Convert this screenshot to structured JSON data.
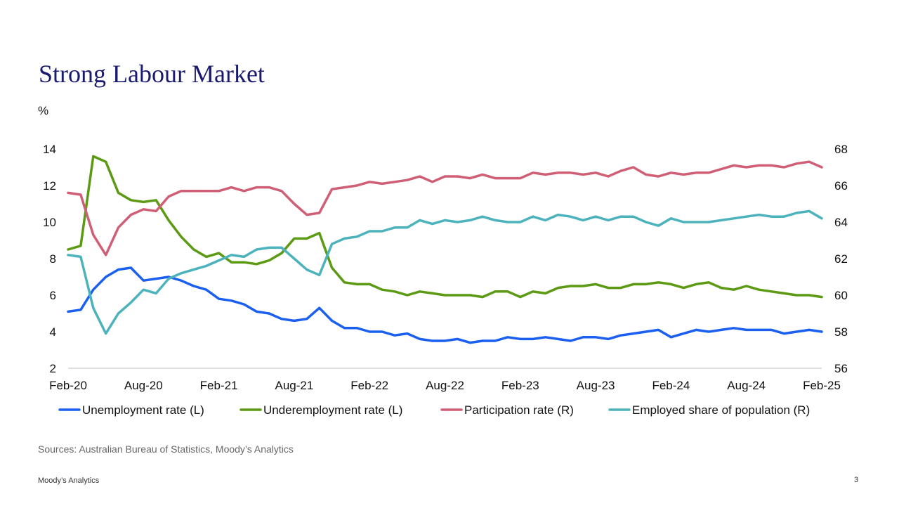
{
  "slide": {
    "title": "Strong Labour Market",
    "source": "Sources: Australian Bureau of Statistics, Moody’s Analytics",
    "brand": "Moody’s Analytics",
    "page_number": "3"
  },
  "chart_data": {
    "type": "line",
    "title": "",
    "left_axis_unit": "%",
    "xlabel": "",
    "ylabel": "%",
    "ylim_left": [
      2,
      14
    ],
    "ylim_right": [
      56,
      68
    ],
    "y_ticks_left": [
      "14",
      "12",
      "10",
      "8",
      "6",
      "4",
      "2"
    ],
    "y_ticks_right": [
      "68",
      "66",
      "64",
      "62",
      "60",
      "58",
      "56"
    ],
    "x_tick_labels": [
      "Feb-20",
      "Aug-20",
      "Feb-21",
      "Aug-21",
      "Feb-22",
      "Aug-22",
      "Feb-23",
      "Aug-23",
      "Feb-24",
      "Aug-24",
      "Feb-25"
    ],
    "x": [
      "Feb-20",
      "Mar-20",
      "Apr-20",
      "May-20",
      "Jun-20",
      "Jul-20",
      "Aug-20",
      "Sep-20",
      "Oct-20",
      "Nov-20",
      "Dec-20",
      "Jan-21",
      "Feb-21",
      "Mar-21",
      "Apr-21",
      "May-21",
      "Jun-21",
      "Jul-21",
      "Aug-21",
      "Sep-21",
      "Oct-21",
      "Nov-21",
      "Dec-21",
      "Jan-22",
      "Feb-22",
      "Mar-22",
      "Apr-22",
      "May-22",
      "Jun-22",
      "Jul-22",
      "Aug-22",
      "Sep-22",
      "Oct-22",
      "Nov-22",
      "Dec-22",
      "Jan-23",
      "Feb-23",
      "Mar-23",
      "Apr-23",
      "May-23",
      "Jun-23",
      "Jul-23",
      "Aug-23",
      "Sep-23",
      "Oct-23",
      "Nov-23",
      "Dec-23",
      "Jan-24",
      "Feb-24",
      "Mar-24",
      "Apr-24",
      "May-24",
      "Jun-24",
      "Jul-24",
      "Aug-24",
      "Sep-24",
      "Oct-24",
      "Nov-24",
      "Dec-24",
      "Jan-25",
      "Feb-25"
    ],
    "legend_position": "bottom",
    "grid": false,
    "series": [
      {
        "name": "Unemployment rate (L)",
        "axis": "left",
        "color": "#1a5ff0",
        "values": [
          5.1,
          5.2,
          6.3,
          7.0,
          7.4,
          7.5,
          6.8,
          6.9,
          7.0,
          6.8,
          6.5,
          6.3,
          5.8,
          5.7,
          5.5,
          5.1,
          5.0,
          4.7,
          4.6,
          4.7,
          5.3,
          4.6,
          4.2,
          4.2,
          4.0,
          4.0,
          3.8,
          3.9,
          3.6,
          3.5,
          3.5,
          3.6,
          3.4,
          3.5,
          3.5,
          3.7,
          3.6,
          3.6,
          3.7,
          3.6,
          3.5,
          3.7,
          3.7,
          3.6,
          3.8,
          3.9,
          4.0,
          4.1,
          3.7,
          3.9,
          4.1,
          4.0,
          4.1,
          4.2,
          4.1,
          4.1,
          4.1,
          3.9,
          4.0,
          4.1,
          4.0
        ]
      },
      {
        "name": "Underemployment rate (L)",
        "axis": "left",
        "color": "#5b9a12",
        "values": [
          8.5,
          8.7,
          13.6,
          13.3,
          11.6,
          11.2,
          11.1,
          11.2,
          10.1,
          9.2,
          8.5,
          8.1,
          8.3,
          7.8,
          7.8,
          7.7,
          7.9,
          8.3,
          9.1,
          9.1,
          9.4,
          7.5,
          6.7,
          6.6,
          6.6,
          6.3,
          6.2,
          6.0,
          6.2,
          6.1,
          6.0,
          6.0,
          6.0,
          5.9,
          6.2,
          6.2,
          5.9,
          6.2,
          6.1,
          6.4,
          6.5,
          6.5,
          6.6,
          6.4,
          6.4,
          6.6,
          6.6,
          6.7,
          6.6,
          6.4,
          6.6,
          6.7,
          6.4,
          6.3,
          6.5,
          6.3,
          6.2,
          6.1,
          6.0,
          6.0,
          5.9
        ]
      },
      {
        "name": "Participation rate (R)",
        "axis": "right",
        "color": "#d05e75",
        "values": [
          65.6,
          65.5,
          63.3,
          62.2,
          63.7,
          64.4,
          64.7,
          64.6,
          65.4,
          65.7,
          65.7,
          65.7,
          65.7,
          65.9,
          65.7,
          65.9,
          65.9,
          65.7,
          65.0,
          64.4,
          64.5,
          65.8,
          65.9,
          66.0,
          66.2,
          66.1,
          66.2,
          66.3,
          66.5,
          66.2,
          66.5,
          66.5,
          66.4,
          66.6,
          66.4,
          66.4,
          66.4,
          66.7,
          66.6,
          66.7,
          66.7,
          66.6,
          66.7,
          66.5,
          66.8,
          67.0,
          66.6,
          66.5,
          66.7,
          66.6,
          66.7,
          66.7,
          66.9,
          67.1,
          67.0,
          67.1,
          67.1,
          67.0,
          67.2,
          67.3,
          67.0
        ]
      },
      {
        "name": "Employed share of population (R)",
        "axis": "right",
        "color": "#4cb3bd",
        "values": [
          62.2,
          62.1,
          59.3,
          57.9,
          59.0,
          59.6,
          60.3,
          60.1,
          60.9,
          61.2,
          61.4,
          61.6,
          61.9,
          62.2,
          62.1,
          62.5,
          62.6,
          62.6,
          62.0,
          61.4,
          61.1,
          62.8,
          63.1,
          63.2,
          63.5,
          63.5,
          63.7,
          63.7,
          64.1,
          63.9,
          64.1,
          64.0,
          64.1,
          64.3,
          64.1,
          64.0,
          64.0,
          64.3,
          64.1,
          64.4,
          64.3,
          64.1,
          64.3,
          64.1,
          64.3,
          64.3,
          64.0,
          63.8,
          64.2,
          64.0,
          64.0,
          64.0,
          64.1,
          64.2,
          64.3,
          64.4,
          64.3,
          64.3,
          64.5,
          64.6,
          64.2
        ]
      }
    ]
  }
}
